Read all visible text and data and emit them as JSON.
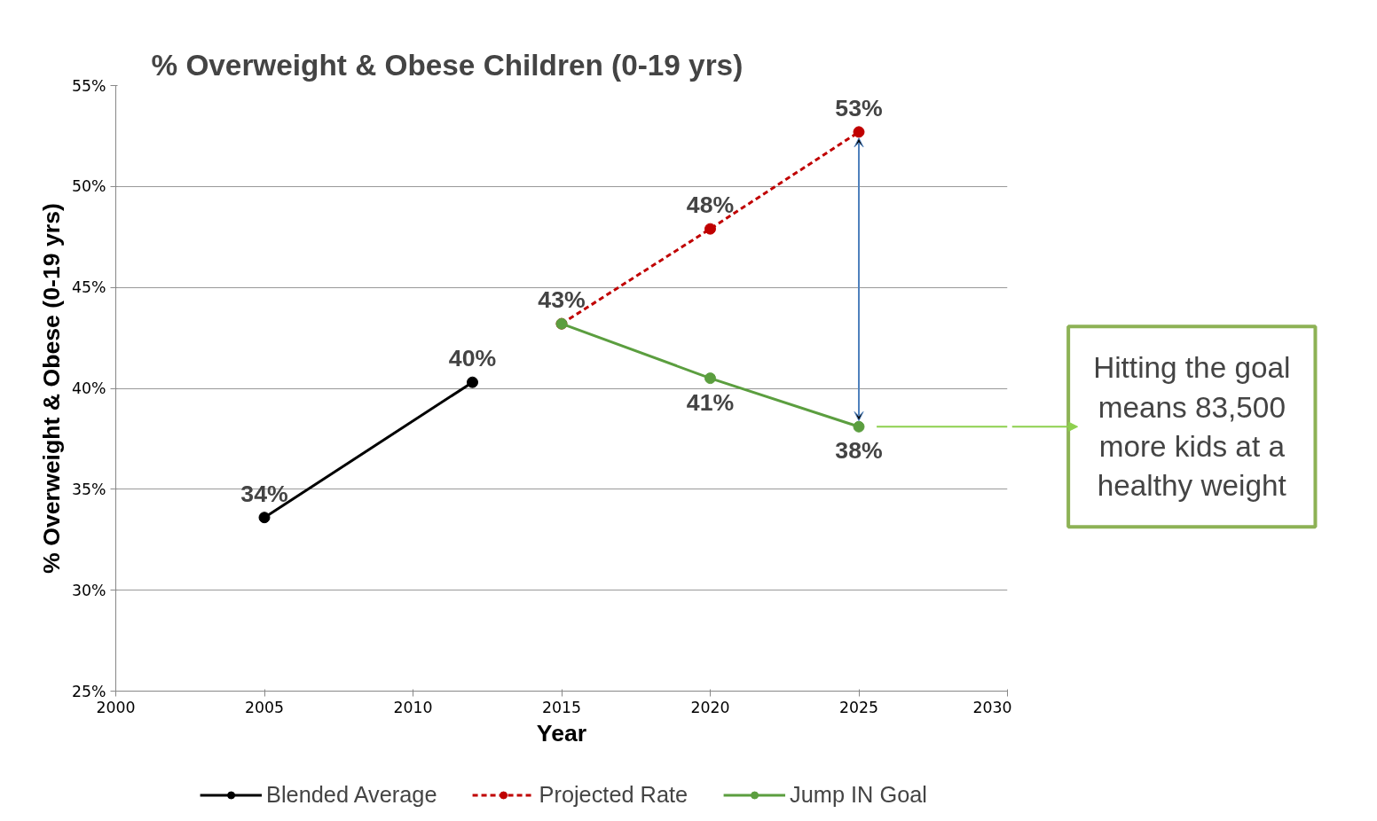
{
  "chart_data": {
    "type": "line",
    "title": "% Overweight & Obese Children (0-19 yrs)",
    "xlabel": "Year",
    "ylabel": "% Overweight & Obese (0-19 yrs)",
    "series": [
      {
        "name": "Blended Average",
        "color": "#000000",
        "x": [
          2005,
          2012
        ],
        "values": [
          33.6,
          40.3
        ],
        "value_labels": [
          "34%",
          "40%"
        ],
        "line_style": "solid"
      },
      {
        "name": "Projected Rate",
        "color": "#c00000",
        "x": [
          2015,
          2020,
          2025
        ],
        "values": [
          43.2,
          47.9,
          52.7
        ],
        "value_labels": [
          null,
          "48%",
          "53%"
        ],
        "line_style": "dashed"
      },
      {
        "name": "Jump IN Goal",
        "color": "#5b9e3f",
        "x": [
          2015,
          2020,
          2025
        ],
        "values": [
          43.2,
          40.5,
          38.1
        ],
        "value_labels": [
          "43%",
          "41%",
          "38%"
        ],
        "line_style": "solid"
      }
    ],
    "annotations": [
      "Hitting the goal means 83,500 more kids at a healthy weight"
    ],
    "xlim": [
      2000,
      2030
    ],
    "xticks": [
      2000,
      2005,
      2010,
      2015,
      2020,
      2025,
      2030
    ],
    "ylim": [
      25,
      55
    ],
    "yticks": [
      {
        "value": 25,
        "label": "25%"
      },
      {
        "value": 30,
        "label": "30%"
      },
      {
        "value": 35,
        "label": "35%"
      },
      {
        "value": 40,
        "label": "40%"
      },
      {
        "value": 45,
        "label": "45%"
      },
      {
        "value": 50,
        "label": "50%"
      },
      {
        "value": 55,
        "label": "55%"
      }
    ],
    "grid": "y",
    "legend": "bottom",
    "marker": "circle"
  }
}
